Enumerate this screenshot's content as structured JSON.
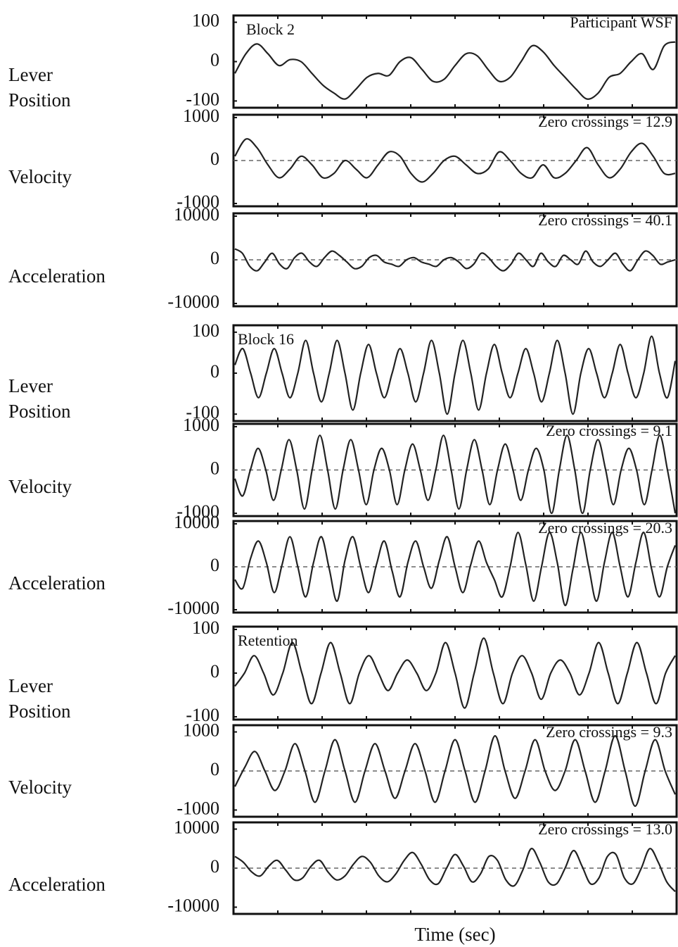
{
  "chart_data": [
    {
      "type": "line",
      "ylabel": "Lever Position",
      "label": "Block 2",
      "note": "Participant WSF",
      "ylim": [
        -110,
        110
      ],
      "yticks": [
        -100,
        0,
        100
      ],
      "zero_line": false,
      "color": "#222",
      "values": [
        -30,
        20,
        45,
        20,
        -10,
        5,
        0,
        -30,
        -60,
        -80,
        -95,
        -70,
        -40,
        -30,
        -35,
        0,
        10,
        -20,
        -50,
        -45,
        -10,
        20,
        15,
        -20,
        -50,
        -40,
        0,
        40,
        25,
        -10,
        -40,
        -70,
        -95,
        -80,
        -40,
        -30,
        0,
        20,
        -20,
        40,
        50
      ]
    },
    {
      "type": "line",
      "ylabel": "Velocity",
      "note": "Zero crossings = 12.9",
      "ylim": [
        -1000,
        1000
      ],
      "yticks": [
        -1000,
        0,
        1000
      ],
      "zero_line": true,
      "color": "#222",
      "values": [
        100,
        500,
        300,
        -100,
        -400,
        -200,
        100,
        -100,
        -400,
        -300,
        0,
        -200,
        -400,
        -100,
        200,
        100,
        -300,
        -500,
        -300,
        0,
        100,
        -100,
        -300,
        -200,
        200,
        0,
        -300,
        -400,
        -100,
        -400,
        -300,
        0,
        300,
        -100,
        -400,
        -200,
        200,
        400,
        100,
        -300,
        -300
      ]
    },
    {
      "type": "line",
      "ylabel": "Acceleration",
      "note": "Zero crossings = 40.1",
      "ylim": [
        -10000,
        10000
      ],
      "yticks": [
        -10000,
        0,
        10000
      ],
      "zero_line": true,
      "color": "#222",
      "values": [
        2500,
        1500,
        -1500,
        -2500,
        -500,
        1500,
        -1000,
        -2000,
        500,
        1500,
        -500,
        -1500,
        500,
        2000,
        1000,
        -500,
        -2000,
        -1500,
        500,
        1000,
        -500,
        -1000,
        -1500,
        0,
        500,
        -500,
        -1000,
        -1500,
        0,
        500,
        -500,
        -2000,
        -1000,
        1500,
        500,
        -1500,
        -2500,
        -1000,
        1500,
        0,
        -1500,
        1500,
        -500,
        -1500,
        1000,
        0,
        -1000,
        2000,
        -500,
        -1500,
        0,
        1500,
        -1000,
        -2500,
        0,
        2000,
        1000,
        -1000,
        -500,
        0
      ]
    },
    {
      "type": "line",
      "ylabel": "Lever Position",
      "label": "Block 16",
      "ylim": [
        -110,
        110
      ],
      "yticks": [
        -100,
        0,
        100
      ],
      "zero_line": false,
      "color": "#222",
      "values": [
        20,
        60,
        0,
        -60,
        0,
        60,
        0,
        -60,
        0,
        80,
        0,
        -70,
        0,
        80,
        0,
        -90,
        0,
        70,
        0,
        -60,
        0,
        60,
        0,
        -70,
        0,
        80,
        0,
        -100,
        0,
        80,
        0,
        -90,
        0,
        70,
        0,
        -60,
        0,
        60,
        0,
        -70,
        0,
        80,
        0,
        -100,
        0,
        60,
        0,
        -60,
        0,
        70,
        0,
        -60,
        0,
        90,
        0,
        -60,
        30
      ]
    },
    {
      "type": "line",
      "ylabel": "Velocity",
      "note": "Zero crossings = 9.1",
      "ylim": [
        -1000,
        1000
      ],
      "yticks": [
        -1000,
        0,
        1000
      ],
      "zero_line": true,
      "color": "#222",
      "values": [
        -200,
        -600,
        0,
        500,
        0,
        -700,
        0,
        700,
        0,
        -900,
        0,
        800,
        0,
        -900,
        0,
        700,
        0,
        -800,
        0,
        500,
        0,
        -800,
        0,
        600,
        0,
        -700,
        0,
        800,
        0,
        -900,
        0,
        700,
        0,
        -800,
        0,
        600,
        0,
        -700,
        0,
        500,
        0,
        -1000,
        0,
        800,
        0,
        -1000,
        0,
        700,
        0,
        -800,
        0,
        500,
        0,
        -800,
        0,
        800,
        0,
        -1000
      ]
    },
    {
      "type": "line",
      "ylabel": "Acceleration",
      "note": "Zero crossings = 20.3",
      "ylim": [
        -10000,
        10000
      ],
      "yticks": [
        -10000,
        0,
        10000
      ],
      "zero_line": true,
      "color": "#222",
      "values": [
        -3000,
        -5000,
        2000,
        6000,
        1000,
        -6000,
        500,
        7000,
        0,
        -7000,
        1000,
        7000,
        -500,
        -8000,
        1500,
        7000,
        0,
        -6000,
        500,
        6000,
        -1000,
        -7000,
        1000,
        6000,
        0,
        -5000,
        1500,
        7000,
        0,
        -6000,
        500,
        6000,
        1000,
        -3000,
        -7000,
        0,
        8000,
        500,
        -8000,
        0,
        8000,
        1000,
        -9000,
        -500,
        8000,
        0,
        -8000,
        1000,
        8000,
        0,
        -7000,
        1000,
        8000,
        -500,
        -7000,
        0,
        5000
      ]
    },
    {
      "type": "line",
      "ylabel": "Lever Position",
      "label": "Retention",
      "ylim": [
        -100,
        100
      ],
      "yticks": [
        -100,
        0,
        100
      ],
      "zero_line": false,
      "color": "#222",
      "values": [
        -30,
        0,
        40,
        0,
        -50,
        0,
        70,
        0,
        -70,
        0,
        70,
        0,
        -70,
        0,
        40,
        0,
        -40,
        0,
        30,
        0,
        -40,
        0,
        70,
        0,
        -80,
        0,
        80,
        0,
        -70,
        0,
        40,
        0,
        -60,
        0,
        30,
        0,
        -50,
        0,
        70,
        0,
        -70,
        0,
        70,
        0,
        -70,
        0,
        40
      ]
    },
    {
      "type": "line",
      "ylabel": "Velocity",
      "note": "Zero crossings = 9.3",
      "ylim": [
        -1100,
        1100
      ],
      "yticks": [
        -1000,
        0,
        1000
      ],
      "zero_line": true,
      "color": "#222",
      "values": [
        -400,
        100,
        500,
        0,
        -500,
        0,
        700,
        0,
        -800,
        0,
        800,
        0,
        -800,
        0,
        700,
        0,
        -700,
        0,
        700,
        0,
        -800,
        0,
        800,
        0,
        -800,
        0,
        900,
        0,
        -700,
        0,
        800,
        0,
        -500,
        0,
        800,
        0,
        -800,
        0,
        900,
        0,
        -900,
        0,
        800,
        0,
        -600
      ]
    },
    {
      "type": "line",
      "ylabel": "Acceleration",
      "note": "Zero crossings = 13.0",
      "xlabel": "Time (sec)",
      "ylim": [
        -11000,
        11000
      ],
      "yticks": [
        -10000,
        0,
        10000
      ],
      "zero_line": true,
      "color": "#222",
      "values": [
        3000,
        1500,
        -1000,
        -2000,
        500,
        2000,
        -500,
        -3000,
        -2500,
        500,
        2000,
        -1000,
        -3000,
        -2000,
        1000,
        3000,
        1500,
        -2000,
        -3500,
        -1500,
        2000,
        4000,
        1000,
        -3000,
        -4000,
        0,
        3500,
        500,
        -3500,
        -1500,
        3000,
        2000,
        -3000,
        -4500,
        -500,
        5000,
        1500,
        -3500,
        -4000,
        0,
        4500,
        500,
        -4000,
        -2500,
        3000,
        3500,
        -2500,
        -4000,
        0,
        5000,
        1500,
        -3500,
        -6000
      ]
    }
  ]
}
